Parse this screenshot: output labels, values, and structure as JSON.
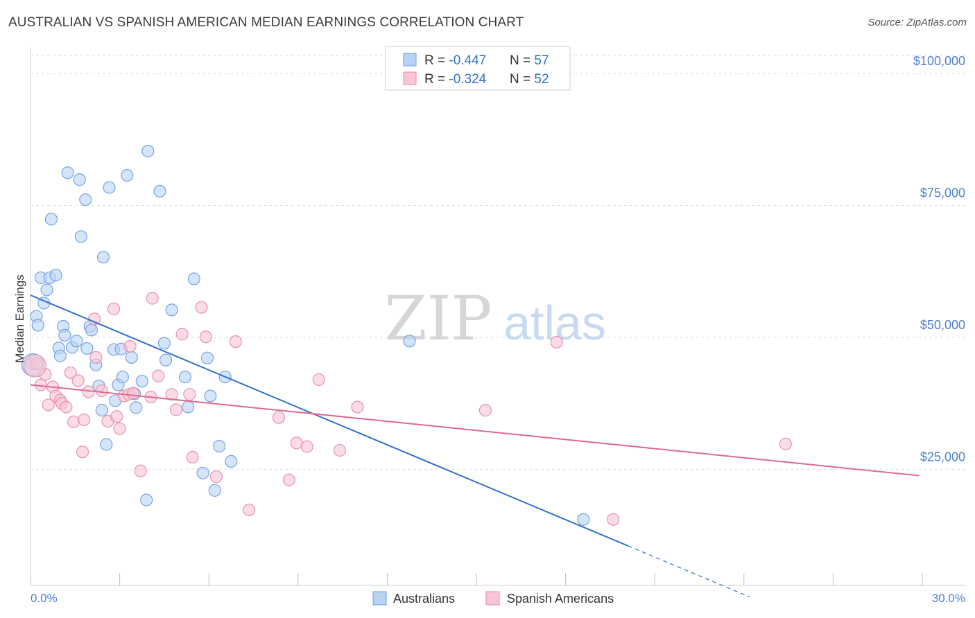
{
  "title": "AUSTRALIAN VS SPANISH AMERICAN MEDIAN EARNINGS CORRELATION CHART",
  "source": "Source: ZipAtlas.com",
  "watermark": {
    "zip": "ZIP",
    "atlas": "atlas"
  },
  "legend_top": [
    {
      "r_label": "R = ",
      "r_value": "-0.447",
      "n_label": "N = ",
      "n_value": "57",
      "color": "#6d9ee0"
    },
    {
      "r_label": "R = ",
      "r_value": "-0.324",
      "n_label": "N = ",
      "n_value": "52",
      "color": "#e98aab"
    }
  ],
  "legend_bottom": [
    "Australians",
    "Spanish Americans"
  ],
  "chart_data": {
    "type": "scatter",
    "title": "AUSTRALIAN VS SPANISH AMERICAN MEDIAN EARNINGS CORRELATION CHART",
    "xlabel": "",
    "ylabel": "Median Earnings",
    "xlim": [
      0,
      30
    ],
    "ylim": [
      3000,
      105000
    ],
    "x_tick_labels": [
      "0.0%",
      "30.0%"
    ],
    "y_ticks": [
      25000,
      50000,
      75000,
      100000
    ],
    "y_tick_labels": [
      "$25,000",
      "$50,000",
      "$75,000",
      "$100,000"
    ],
    "series": [
      {
        "name": "Australians",
        "color": "#6d9ee0",
        "fill": "#b9d3f5",
        "line_color": "#2e6fd0",
        "trend": {
          "x0": 0,
          "y0": 58000,
          "x1": 20.1,
          "y1": 10500,
          "dash_to_x": 24.2,
          "dash_to_y": 800
        },
        "points": [
          [
            0.05,
            45000
          ],
          [
            0.2,
            54000
          ],
          [
            0.25,
            52300
          ],
          [
            0.35,
            61300
          ],
          [
            0.45,
            56500
          ],
          [
            0.55,
            59000
          ],
          [
            0.65,
            61300
          ],
          [
            0.7,
            72400
          ],
          [
            0.85,
            61800
          ],
          [
            0.95,
            48000
          ],
          [
            1.0,
            46500
          ],
          [
            1.1,
            52100
          ],
          [
            1.15,
            50400
          ],
          [
            1.25,
            81200
          ],
          [
            1.4,
            48100
          ],
          [
            1.55,
            49300
          ],
          [
            1.65,
            79900
          ],
          [
            1.7,
            69100
          ],
          [
            1.85,
            76100
          ],
          [
            1.9,
            47900
          ],
          [
            2.0,
            52100
          ],
          [
            2.05,
            51400
          ],
          [
            2.2,
            44800
          ],
          [
            2.3,
            40800
          ],
          [
            2.4,
            36200
          ],
          [
            2.45,
            65200
          ],
          [
            2.55,
            29700
          ],
          [
            2.65,
            78400
          ],
          [
            2.8,
            47700
          ],
          [
            2.85,
            38000
          ],
          [
            2.95,
            41000
          ],
          [
            3.05,
            47800
          ],
          [
            3.1,
            42500
          ],
          [
            3.25,
            80700
          ],
          [
            3.4,
            46200
          ],
          [
            3.5,
            39300
          ],
          [
            3.55,
            36700
          ],
          [
            3.75,
            41700
          ],
          [
            3.9,
            19200
          ],
          [
            3.95,
            85300
          ],
          [
            4.35,
            77700
          ],
          [
            4.5,
            48900
          ],
          [
            4.55,
            45700
          ],
          [
            4.75,
            55200
          ],
          [
            5.2,
            42500
          ],
          [
            5.3,
            36800
          ],
          [
            5.5,
            61100
          ],
          [
            5.8,
            24300
          ],
          [
            5.95,
            46100
          ],
          [
            6.05,
            38900
          ],
          [
            6.2,
            21000
          ],
          [
            6.35,
            29400
          ],
          [
            6.55,
            42500
          ],
          [
            6.75,
            26500
          ],
          [
            12.75,
            49300
          ],
          [
            18.6,
            15500
          ],
          [
            0.08,
            44800
          ]
        ]
      },
      {
        "name": "Spanish Americans",
        "color": "#e98aab",
        "fill": "#f8c5d5",
        "line_color": "#e06890",
        "trend": {
          "x0": 0,
          "y0": 41000,
          "x1": 29.9,
          "y1": 23800
        },
        "points": [
          [
            0.2,
            45000
          ],
          [
            0.35,
            41000
          ],
          [
            0.5,
            43000
          ],
          [
            0.6,
            37200
          ],
          [
            0.75,
            40600
          ],
          [
            0.85,
            38900
          ],
          [
            1.0,
            38100
          ],
          [
            1.05,
            37500
          ],
          [
            1.2,
            36800
          ],
          [
            1.35,
            43300
          ],
          [
            1.45,
            34000
          ],
          [
            1.6,
            41800
          ],
          [
            1.75,
            28300
          ],
          [
            1.8,
            34400
          ],
          [
            1.95,
            39700
          ],
          [
            2.15,
            53500
          ],
          [
            2.2,
            46200
          ],
          [
            2.4,
            39900
          ],
          [
            2.6,
            34100
          ],
          [
            2.8,
            55400
          ],
          [
            2.9,
            35000
          ],
          [
            3.0,
            32700
          ],
          [
            3.15,
            38900
          ],
          [
            3.3,
            39200
          ],
          [
            3.35,
            48300
          ],
          [
            3.45,
            39400
          ],
          [
            3.7,
            24700
          ],
          [
            4.05,
            38700
          ],
          [
            4.1,
            57400
          ],
          [
            4.3,
            42700
          ],
          [
            4.75,
            39200
          ],
          [
            4.9,
            36300
          ],
          [
            5.1,
            50600
          ],
          [
            5.35,
            39200
          ],
          [
            5.45,
            27300
          ],
          [
            5.75,
            55700
          ],
          [
            5.9,
            50100
          ],
          [
            6.25,
            23600
          ],
          [
            6.9,
            49200
          ],
          [
            7.35,
            17300
          ],
          [
            8.35,
            34800
          ],
          [
            8.7,
            23000
          ],
          [
            8.95,
            30000
          ],
          [
            9.3,
            29300
          ],
          [
            9.7,
            42000
          ],
          [
            10.4,
            28600
          ],
          [
            11.0,
            36800
          ],
          [
            15.3,
            36200
          ],
          [
            17.7,
            49100
          ],
          [
            25.4,
            29800
          ],
          [
            19.6,
            15500
          ],
          [
            0.15,
            44600
          ]
        ]
      }
    ]
  }
}
